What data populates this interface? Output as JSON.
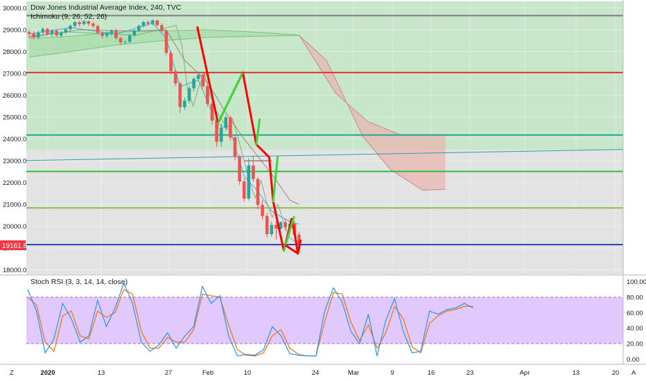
{
  "chart_data": {
    "type": "candlestick",
    "main": {
      "title": "Dow Jones Industrial Average Index, 240, TVC",
      "indicator": "Ichimoku (9, 26, 52, 26)",
      "y_ticks": [
        "30000.0",
        "29000.0",
        "28000.0",
        "27000.0",
        "26000.0",
        "25000.0",
        "24000.0",
        "23000.0",
        "22000.0",
        "21000.0",
        "20000.0",
        "19000.0",
        "18000.0"
      ],
      "ylim": [
        17800,
        30300
      ],
      "current_price": "19161.8",
      "horizontal_levels": [
        {
          "value": 29650,
          "color": "#787b86"
        },
        {
          "value": 27040,
          "color": "#d32f2f"
        },
        {
          "value": 24180,
          "color": "#26a69a"
        },
        {
          "value": 22510,
          "color": "#2ebd3b"
        },
        {
          "value": 20840,
          "color": "#8bc34a"
        },
        {
          "value": 19161.8,
          "color": "#2d3ab3"
        }
      ],
      "trendline": {
        "from": [
          0,
          23010
        ],
        "to": [
          60,
          23520
        ],
        "color": "#26a69a"
      },
      "zones": [
        {
          "from": 23510,
          "to": 30300,
          "color": "#c8e6c9"
        },
        {
          "from": 17800,
          "to": 23510,
          "color": "#e3e3e3"
        }
      ],
      "zigzag_down": [
        [
          29.9,
          29150
        ],
        [
          33.6,
          24720
        ],
        [
          38.0,
          27040
        ],
        [
          40.4,
          23750
        ],
        [
          42.7,
          23160
        ],
        [
          43.4,
          21140
        ],
        [
          45.3,
          18880
        ],
        [
          46.7,
          20340
        ],
        [
          47.3,
          19560
        ],
        [
          47.8,
          18750
        ]
      ],
      "zigzag_up": [
        [
          33.6,
          24720
        ],
        [
          37.9,
          27000
        ],
        [
          40.4,
          23750
        ],
        [
          41.0,
          24890
        ],
        [
          43.4,
          21140
        ],
        [
          44.2,
          23160
        ],
        [
          45.3,
          18880
        ],
        [
          47.1,
          20420
        ]
      ],
      "candles": [
        [
          1,
          28900,
          28820,
          29010,
          28660
        ],
        [
          2,
          28820,
          28650,
          28930,
          28560
        ],
        [
          3,
          28650,
          28870,
          28960,
          28570
        ],
        [
          4,
          28870,
          29040,
          29120,
          28790
        ],
        [
          5,
          29040,
          28810,
          29090,
          28740
        ],
        [
          6,
          28810,
          28960,
          29030,
          28690
        ],
        [
          7,
          28960,
          28740,
          29010,
          28700
        ],
        [
          8,
          28740,
          28880,
          28950,
          28640
        ],
        [
          9,
          28880,
          29020,
          29080,
          28800
        ],
        [
          10,
          29020,
          29180,
          29250,
          28960
        ],
        [
          11,
          29180,
          29350,
          29420,
          29100
        ],
        [
          12,
          29350,
          29260,
          29420,
          29140
        ],
        [
          13,
          29260,
          29390,
          29460,
          29190
        ],
        [
          14,
          29390,
          29280,
          29430,
          29170
        ],
        [
          15,
          29280,
          29170,
          29360,
          29090
        ],
        [
          16,
          29170,
          28860,
          29230,
          28790
        ],
        [
          17,
          28860,
          28720,
          28920,
          28590
        ],
        [
          18,
          28720,
          28840,
          28930,
          28610
        ],
        [
          19,
          28840,
          28980,
          29020,
          28740
        ],
        [
          20,
          28980,
          28620,
          29050,
          28540
        ],
        [
          21,
          28620,
          28420,
          28690,
          28290
        ],
        [
          22,
          28420,
          28450,
          28530,
          28330
        ],
        [
          23,
          28450,
          28740,
          28810,
          28390
        ],
        [
          24,
          28740,
          28960,
          29040,
          28660
        ],
        [
          25,
          28960,
          29180,
          29250,
          28890
        ],
        [
          26,
          29180,
          29350,
          29420,
          29100
        ],
        [
          27,
          29350,
          29280,
          29430,
          29200
        ],
        [
          28,
          29280,
          29430,
          29480,
          29200
        ],
        [
          29,
          29430,
          29210,
          29470,
          29130
        ],
        [
          30,
          29210,
          28950,
          29300,
          28880
        ],
        [
          31,
          28950,
          27940,
          29020,
          27830
        ],
        [
          32,
          27940,
          27100,
          28040,
          26950
        ],
        [
          33,
          27100,
          26540,
          27210,
          26420
        ],
        [
          34,
          26540,
          25460,
          26610,
          25180
        ],
        [
          35,
          25460,
          25750,
          25900,
          25340
        ],
        [
          36,
          25750,
          26320,
          26430,
          25630
        ],
        [
          37,
          26320,
          26750,
          26830,
          26170
        ],
        [
          38,
          26750,
          26930,
          27090,
          26640
        ],
        [
          39,
          26930,
          26410,
          27040,
          26280
        ],
        [
          40,
          26410,
          25610,
          26490,
          25470
        ],
        [
          41,
          25610,
          24840,
          25750,
          24650
        ],
        [
          42,
          24840,
          23870,
          24910,
          23630
        ],
        [
          43,
          23870,
          24520,
          24710,
          23650
        ],
        [
          44,
          24520,
          24990,
          25060,
          24380
        ],
        [
          45,
          24990,
          24070,
          25050,
          23930
        ],
        [
          46,
          24070,
          23180,
          24150,
          23010
        ],
        [
          47,
          23180,
          22050,
          23270,
          21900
        ],
        [
          48,
          22050,
          21270,
          22210,
          21120
        ],
        [
          49,
          21270,
          22790,
          23120,
          21170
        ],
        [
          50,
          22790,
          22160,
          23250,
          22020
        ],
        [
          51,
          22160,
          20980,
          22260,
          20790
        ],
        [
          52,
          20980,
          20470,
          21200,
          20300
        ],
        [
          53,
          20470,
          19640,
          20620,
          19480
        ],
        [
          54,
          19640,
          20060,
          20210,
          19520
        ],
        [
          55,
          20060,
          19890,
          20230,
          19400
        ],
        [
          56,
          19890,
          20190,
          20240,
          19830
        ],
        [
          57,
          20190,
          19950,
          20360,
          19790
        ],
        [
          58,
          19950,
          20120,
          20340,
          19870
        ],
        [
          59,
          20120,
          19620,
          20250,
          19520
        ],
        [
          60,
          19620,
          19160,
          19750,
          19060
        ]
      ]
    },
    "stoch": {
      "title": "Stoch RSI (3, 3, 14, 14, close)",
      "y_ticks": [
        "100.00",
        "80.00",
        "60.00",
        "40.00",
        "20.00",
        "0.00"
      ],
      "ylim": [
        -6,
        106
      ],
      "band": [
        20,
        80
      ],
      "k": [
        [
          0,
          90
        ],
        [
          1,
          62
        ],
        [
          2,
          8
        ],
        [
          3,
          26
        ],
        [
          4,
          72
        ],
        [
          5,
          52
        ],
        [
          6,
          22
        ],
        [
          7,
          30
        ],
        [
          8,
          76
        ],
        [
          9,
          42
        ],
        [
          10,
          66
        ],
        [
          11,
          98
        ],
        [
          12,
          72
        ],
        [
          13,
          22
        ],
        [
          14,
          10
        ],
        [
          15,
          18
        ],
        [
          16,
          34
        ],
        [
          17,
          14
        ],
        [
          18,
          30
        ],
        [
          19,
          42
        ],
        [
          20,
          94
        ],
        [
          21,
          72
        ],
        [
          22,
          82
        ],
        [
          23,
          30
        ],
        [
          24,
          4
        ],
        [
          25,
          6
        ],
        [
          26,
          5
        ],
        [
          27,
          12
        ],
        [
          28,
          42
        ],
        [
          29,
          30
        ],
        [
          30,
          7
        ],
        [
          31,
          5
        ],
        [
          32,
          4
        ],
        [
          33,
          4
        ],
        [
          34,
          62
        ],
        [
          35,
          92
        ],
        [
          36,
          74
        ],
        [
          37,
          36
        ],
        [
          38,
          20
        ],
        [
          39,
          58
        ],
        [
          40,
          4
        ],
        [
          41,
          50
        ],
        [
          42,
          78
        ],
        [
          43,
          36
        ],
        [
          44,
          8
        ],
        [
          45,
          10
        ],
        [
          46,
          62
        ],
        [
          47,
          58
        ],
        [
          48,
          64
        ],
        [
          49,
          66
        ],
        [
          50,
          72
        ],
        [
          51,
          66
        ]
      ],
      "d": [
        [
          0,
          80
        ],
        [
          1,
          70
        ],
        [
          2,
          22
        ],
        [
          3,
          10
        ],
        [
          4,
          56
        ],
        [
          5,
          62
        ],
        [
          6,
          30
        ],
        [
          7,
          26
        ],
        [
          8,
          62
        ],
        [
          9,
          54
        ],
        [
          10,
          60
        ],
        [
          11,
          90
        ],
        [
          12,
          84
        ],
        [
          13,
          36
        ],
        [
          14,
          14
        ],
        [
          15,
          14
        ],
        [
          16,
          28
        ],
        [
          17,
          22
        ],
        [
          18,
          22
        ],
        [
          19,
          38
        ],
        [
          20,
          84
        ],
        [
          21,
          82
        ],
        [
          22,
          80
        ],
        [
          23,
          44
        ],
        [
          24,
          12
        ],
        [
          25,
          5
        ],
        [
          26,
          4
        ],
        [
          27,
          8
        ],
        [
          28,
          30
        ],
        [
          29,
          38
        ],
        [
          30,
          14
        ],
        [
          31,
          6
        ],
        [
          32,
          4
        ],
        [
          33,
          4
        ],
        [
          34,
          48
        ],
        [
          35,
          86
        ],
        [
          36,
          84
        ],
        [
          37,
          48
        ],
        [
          38,
          24
        ],
        [
          39,
          44
        ],
        [
          40,
          14
        ],
        [
          41,
          34
        ],
        [
          42,
          68
        ],
        [
          43,
          52
        ],
        [
          44,
          16
        ],
        [
          45,
          8
        ],
        [
          46,
          46
        ],
        [
          47,
          56
        ],
        [
          48,
          62
        ],
        [
          49,
          64
        ],
        [
          50,
          68
        ],
        [
          51,
          68
        ]
      ]
    },
    "x_ticks": [
      "2020",
      "13",
      "27",
      "Feb",
      "10",
      "24",
      "Mar",
      "9",
      "16",
      "23",
      "Apr",
      "13",
      "20"
    ],
    "corner_labels": [
      "Z",
      "A"
    ],
    "colors": {
      "up": "#26a69a",
      "down": "#ef5350",
      "stoch_k": "#2196f3",
      "stoch_d": "#ff6d00",
      "cloud_red": "#e8b3ae",
      "stoch_band": "#e1c9fd",
      "zigzag_down": "#ff0000",
      "zigzag_up": "#33dd33"
    }
  }
}
